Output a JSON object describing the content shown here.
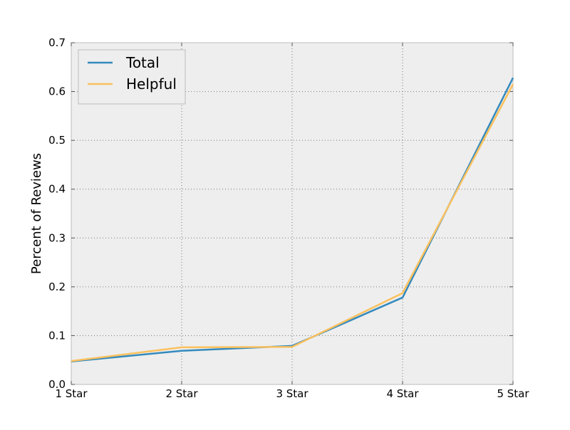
{
  "chart_data": {
    "type": "line",
    "categories": [
      "1 Star",
      "2 Star",
      "3 Star",
      "4 Star",
      "5 Star"
    ],
    "series": [
      {
        "name": "Total",
        "color": "#348abd",
        "values": [
          0.047,
          0.069,
          0.079,
          0.178,
          0.628
        ]
      },
      {
        "name": "Helpful",
        "color": "#fbc15e",
        "values": [
          0.048,
          0.076,
          0.077,
          0.187,
          0.615
        ]
      }
    ],
    "title": "",
    "xlabel": "",
    "ylabel": "Percent of Reviews",
    "ylim": [
      0.0,
      0.7
    ],
    "yticks": [
      0.0,
      0.1,
      0.2,
      0.3,
      0.4,
      0.5,
      0.6,
      0.7
    ],
    "ytick_labels": [
      "0.0",
      "0.1",
      "0.2",
      "0.3",
      "0.4",
      "0.5",
      "0.6",
      "0.7"
    ],
    "grid": true,
    "legend_position": "top-left",
    "plot_background": "#eeeeee"
  }
}
